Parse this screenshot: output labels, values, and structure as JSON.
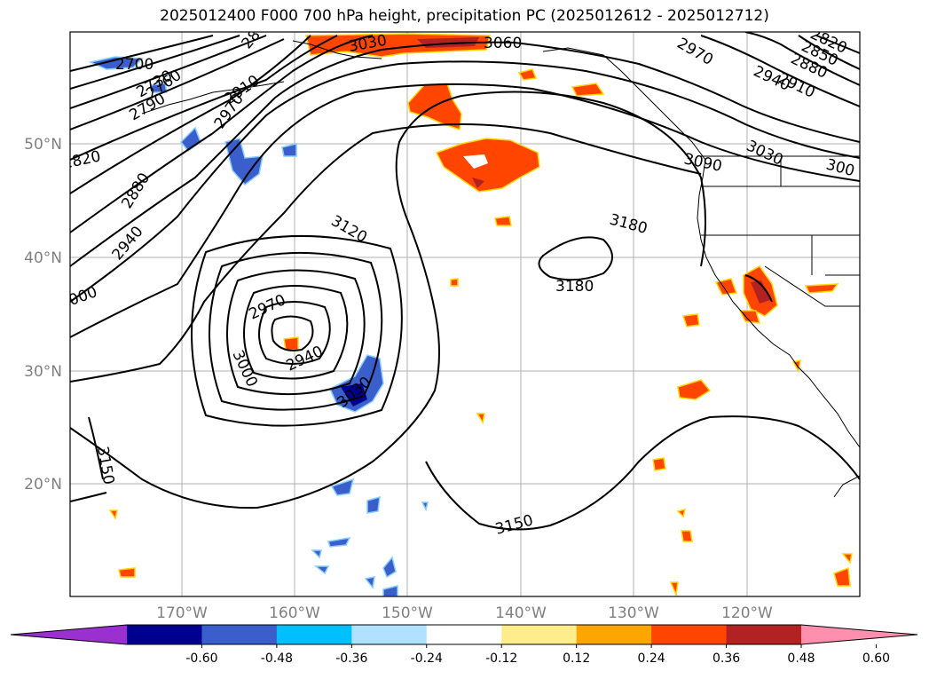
{
  "title": "2025012400 F000 700 hPa height, precipitation PC (2025012612 - 2025012712)",
  "axes": {
    "lat_labels": [
      "50°N",
      "40°N",
      "30°N",
      "20°N"
    ],
    "lon_labels": [
      "170°W",
      "160°W",
      "150°W",
      "140°W",
      "130°W",
      "120°W"
    ]
  },
  "contour_labels": [
    "2700",
    "2730",
    "2760",
    "2790",
    "2820",
    "2880",
    "2940",
    "3000",
    "2910",
    "2970",
    "28",
    "3030",
    "3060",
    "2970",
    "2940",
    "2910",
    "2880",
    "2850",
    "2820",
    "3030",
    "3090",
    "300",
    "3120",
    "3180",
    "3180",
    "2970",
    "3000",
    "2940",
    "3030",
    "3150",
    "3150"
  ],
  "colorbar": {
    "ticks": [
      "-0.60",
      "-0.48",
      "-0.36",
      "-0.24",
      "-0.12",
      "0.12",
      "0.24",
      "0.36",
      "0.48",
      "0.60"
    ],
    "colors": [
      "#9B30D0",
      "#000090",
      "#3A5FCD",
      "#00BFFF",
      "#B0E2FF",
      "#FFFFFF",
      "#FFEC8B",
      "#FFA500",
      "#FF4500",
      "#B22222",
      "#FF8FAF"
    ]
  }
}
